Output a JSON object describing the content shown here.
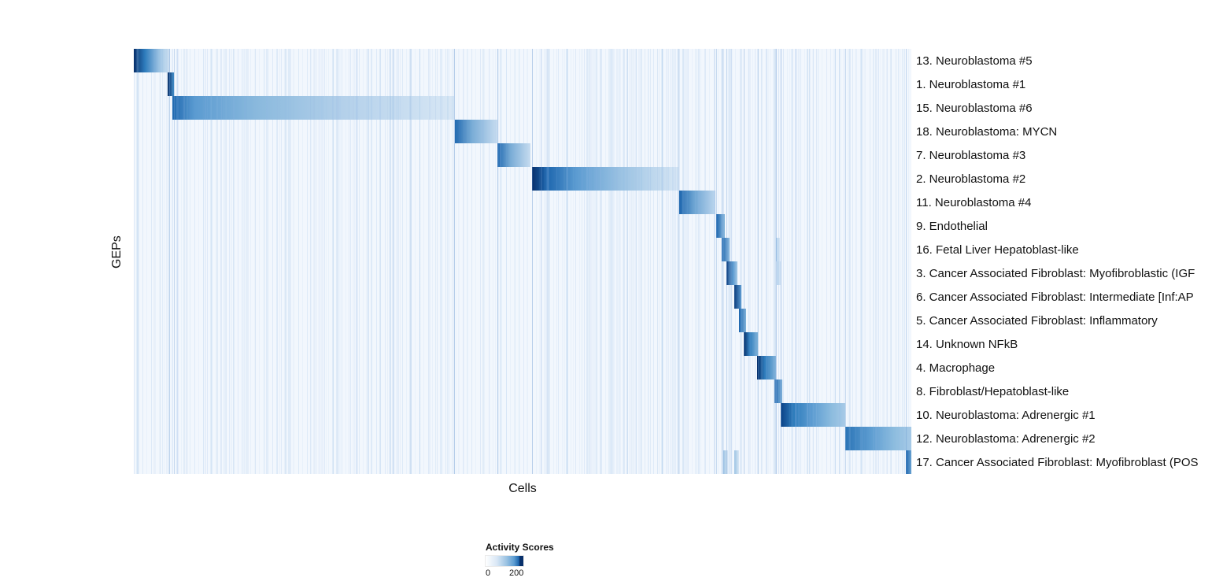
{
  "chart_data": {
    "type": "heatmap",
    "title": "",
    "xlabel": "Cells",
    "ylabel": "GEPs",
    "x_axis": "cells grouped by assigned gene expression program (unlabeled, continuous)",
    "value_name": "Activity Scores",
    "value_range": [
      0,
      200
    ],
    "palette": [
      "#ffffff",
      "#c6dbef",
      "#6baed6",
      "#2171b5",
      "#08306b"
    ],
    "background_color": "#f2f7fd",
    "grid": false,
    "legend": {
      "title": "Activity Scores",
      "min": 0,
      "max": 200,
      "min_label": "0",
      "max_label": "200",
      "position": "bottom"
    },
    "rows": [
      {
        "label": "13. Neuroblastoma #5",
        "blocks": [
          {
            "start": 0.0,
            "end": 0.047,
            "stops": [
              [
                "#08306b",
                0
              ],
              [
                "#2c7abb",
                30
              ],
              [
                "#9cc3e3",
                70
              ],
              [
                "#d2e3f3",
                100
              ]
            ]
          }
        ]
      },
      {
        "label": "1. Neuroblastoma #1",
        "blocks": [
          {
            "start": 0.044,
            "end": 0.052,
            "stops": [
              [
                "#08306b",
                0
              ],
              [
                "#3f8cc6",
                100
              ]
            ]
          }
        ]
      },
      {
        "label": "15. Neuroblastoma #6",
        "blocks": [
          {
            "start": 0.05,
            "end": 0.412,
            "stops": [
              [
                "#2069b0",
                0
              ],
              [
                "#5b9bd1",
                8
              ],
              [
                "#8ab9dd",
                30
              ],
              [
                "#b3d0ea",
                60
              ],
              [
                "#d8e7f5",
                100
              ]
            ]
          }
        ]
      },
      {
        "label": "18. Neuroblastoma: MYCN",
        "blocks": [
          {
            "start": 0.413,
            "end": 0.468,
            "stops": [
              [
                "#2069b0",
                0
              ],
              [
                "#79acd6",
                40
              ],
              [
                "#c7dcf0",
                100
              ]
            ]
          }
        ]
      },
      {
        "label": "7. Neuroblastoma #3",
        "blocks": [
          {
            "start": 0.468,
            "end": 0.51,
            "stops": [
              [
                "#2069b0",
                0
              ],
              [
                "#79acd6",
                40
              ],
              [
                "#c7dcf0",
                100
              ]
            ]
          }
        ]
      },
      {
        "label": "2. Neuroblastoma #2",
        "blocks": [
          {
            "start": 0.512,
            "end": 0.7,
            "stops": [
              [
                "#08306b",
                0
              ],
              [
                "#1d66ae",
                10
              ],
              [
                "#5b9bd1",
                30
              ],
              [
                "#9ac2e2",
                60
              ],
              [
                "#d8e7f5",
                100
              ]
            ]
          }
        ]
      },
      {
        "label": "11. Neuroblastoma #4",
        "blocks": [
          {
            "start": 0.701,
            "end": 0.748,
            "stops": [
              [
                "#1d66ae",
                0
              ],
              [
                "#6ba3d2",
                40
              ],
              [
                "#bcd6ee",
                100
              ]
            ]
          }
        ]
      },
      {
        "label": "9. Endothelial",
        "blocks": [
          {
            "start": 0.749,
            "end": 0.76,
            "stops": [
              [
                "#1d66ae",
                0
              ],
              [
                "#8ab9dd",
                100
              ]
            ]
          }
        ]
      },
      {
        "label": "16. Fetal Liver Hepatoblast-like",
        "blocks": [
          {
            "start": 0.756,
            "end": 0.766,
            "stops": [
              [
                "#1d66ae",
                0
              ],
              [
                "#8ab9dd",
                100
              ]
            ]
          },
          {
            "start": 0.826,
            "end": 0.831,
            "stops": [
              [
                "#b9d5ee",
                0
              ],
              [
                "#d8e7f5",
                100
              ]
            ]
          }
        ]
      },
      {
        "label": "3. Cancer Associated Fibroblast: Myofibroblastic (IGF",
        "blocks": [
          {
            "start": 0.762,
            "end": 0.776,
            "stops": [
              [
                "#0b3d7e",
                0
              ],
              [
                "#5b9bd1",
                60
              ],
              [
                "#a5c9e6",
                100
              ]
            ]
          },
          {
            "start": 0.827,
            "end": 0.832,
            "stops": [
              [
                "#b9d5ee",
                0
              ],
              [
                "#d8e7f5",
                100
              ]
            ]
          }
        ]
      },
      {
        "label": "6. Cancer Associated Fibroblast: Intermediate [Inf:AP",
        "blocks": [
          {
            "start": 0.772,
            "end": 0.781,
            "stops": [
              [
                "#0b3d7e",
                0
              ],
              [
                "#5b9bd1",
                100
              ]
            ]
          }
        ]
      },
      {
        "label": "5. Cancer Associated Fibroblast: Inflammatory",
        "blocks": [
          {
            "start": 0.778,
            "end": 0.787,
            "stops": [
              [
                "#1d66ae",
                0
              ],
              [
                "#7fb2d9",
                100
              ]
            ]
          }
        ]
      },
      {
        "label": "14. Unknown NFkB",
        "blocks": [
          {
            "start": 0.784,
            "end": 0.803,
            "stops": [
              [
                "#08306b",
                0
              ],
              [
                "#2e7cbc",
                40
              ],
              [
                "#7fb2d9",
                100
              ]
            ]
          }
        ]
      },
      {
        "label": "4. Macrophage",
        "blocks": [
          {
            "start": 0.802,
            "end": 0.826,
            "stops": [
              [
                "#08306b",
                0
              ],
              [
                "#2e7cbc",
                40
              ],
              [
                "#7fb2d9",
                100
              ]
            ]
          }
        ]
      },
      {
        "label": "8. Fibroblast/Hepatoblast-like",
        "blocks": [
          {
            "start": 0.824,
            "end": 0.834,
            "stops": [
              [
                "#1d66ae",
                0
              ],
              [
                "#7fb2d9",
                100
              ]
            ]
          }
        ]
      },
      {
        "label": "10. Neuroblastoma: Adrenergic #1",
        "blocks": [
          {
            "start": 0.832,
            "end": 0.915,
            "stops": [
              [
                "#0a4186",
                0
              ],
              [
                "#2e7cbc",
                20
              ],
              [
                "#5f9ed2",
                50
              ],
              [
                "#8ebddf",
                80
              ],
              [
                "#a7cae7",
                100
              ]
            ]
          }
        ]
      },
      {
        "label": "12. Neuroblastoma: Adrenergic #2",
        "blocks": [
          {
            "start": 0.915,
            "end": 1.0,
            "stops": [
              [
                "#2a74b6",
                0
              ],
              [
                "#5f9ed2",
                40
              ],
              [
                "#8ebddf",
                75
              ],
              [
                "#a7cae7",
                100
              ]
            ]
          }
        ]
      },
      {
        "label": "17. Cancer Associated Fibroblast: Myofibroblast (POS",
        "blocks": [
          {
            "start": 0.758,
            "end": 0.764,
            "stops": [
              [
                "#9cc3e3",
                0
              ],
              [
                "#d8e7f5",
                100
              ]
            ]
          },
          {
            "start": 0.772,
            "end": 0.778,
            "stops": [
              [
                "#9cc3e3",
                0
              ],
              [
                "#d8e7f5",
                100
              ]
            ]
          },
          {
            "start": 0.993,
            "end": 1.0,
            "stops": [
              [
                "#1d66ae",
                0
              ],
              [
                "#6ba3d2",
                100
              ]
            ]
          }
        ]
      }
    ],
    "column_boundaries": [
      0.046,
      0.052,
      0.412,
      0.468,
      0.512,
      0.7,
      0.749,
      0.762,
      0.784,
      0.803,
      0.826,
      0.832,
      0.915,
      0.993
    ]
  }
}
